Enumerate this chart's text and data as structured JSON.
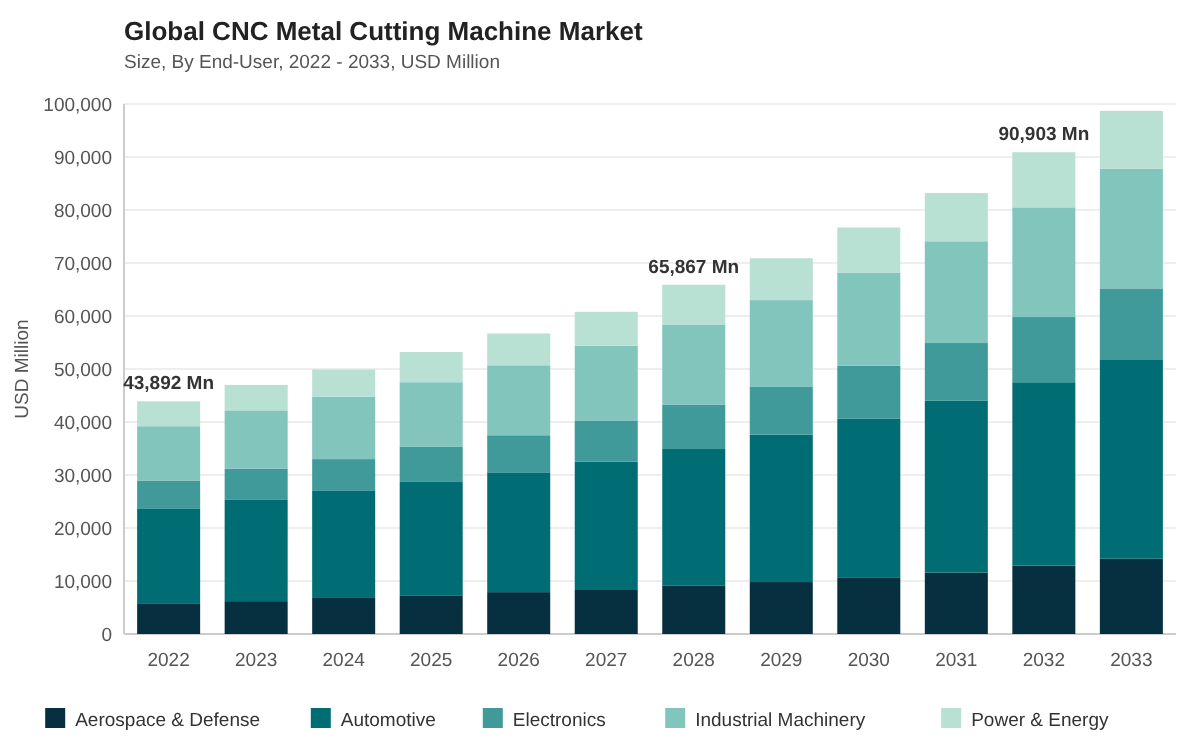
{
  "chart_data": {
    "type": "bar",
    "title": "Global CNC Metal Cutting Machine Market",
    "subtitle": "Size, By End-User, 2022 - 2033, USD Million",
    "ylabel": "USD Million",
    "categories": [
      "2022",
      "2023",
      "2024",
      "2025",
      "2026",
      "2027",
      "2028",
      "2029",
      "2030",
      "2031",
      "2032",
      "2033"
    ],
    "stacked": true,
    "grid": "y",
    "legend": "bottom",
    "ylim": [
      0,
      100000
    ],
    "yticks": [
      {
        "value": 0,
        "label": "0"
      },
      {
        "value": 10000,
        "label": "10,000"
      },
      {
        "value": 20000,
        "label": "20,000"
      },
      {
        "value": 30000,
        "label": "30,000"
      },
      {
        "value": 40000,
        "label": "40,000"
      },
      {
        "value": 50000,
        "label": "50,000"
      },
      {
        "value": 60000,
        "label": "60,000"
      },
      {
        "value": 70000,
        "label": "70,000"
      },
      {
        "value": 80000,
        "label": "80,000"
      },
      {
        "value": 90000,
        "label": "90,000"
      },
      {
        "value": 100000,
        "label": "100,000"
      }
    ],
    "series": [
      {
        "name": "Aerospace & Defense",
        "color": "#06303f",
        "values": [
          5800,
          6200,
          6800,
          7200,
          7900,
          8300,
          9100,
          9800,
          10700,
          11600,
          12900,
          14200
        ]
      },
      {
        "name": "Automotive",
        "color": "#006d75",
        "values": [
          17800,
          19200,
          20300,
          21600,
          22600,
          24200,
          25800,
          27800,
          29900,
          32400,
          34600,
          37500
        ]
      },
      {
        "name": "Electronics",
        "color": "#3f9a99",
        "values": [
          5300,
          5800,
          5900,
          6500,
          7000,
          7700,
          8400,
          9000,
          10000,
          10900,
          12300,
          13500
        ]
      },
      {
        "name": "Industrial Machinery",
        "color": "#82c5bd",
        "values": [
          10300,
          11000,
          11800,
          12200,
          13200,
          14200,
          15100,
          16400,
          17600,
          19200,
          20700,
          22600
        ]
      },
      {
        "name": "Power & Energy",
        "color": "#b8e0d3",
        "values": [
          4700,
          4800,
          5100,
          5700,
          6000,
          6400,
          7500,
          7900,
          8500,
          9100,
          10400,
          10900
        ]
      }
    ],
    "annotations": [
      {
        "text": "43,892 Mn",
        "x": "2022",
        "y": 43892
      },
      {
        "text": "65,867 Mn",
        "x": "2028",
        "y": 65867
      },
      {
        "text": "90,903 Mn",
        "x": "2032",
        "y": 90903
      }
    ]
  }
}
